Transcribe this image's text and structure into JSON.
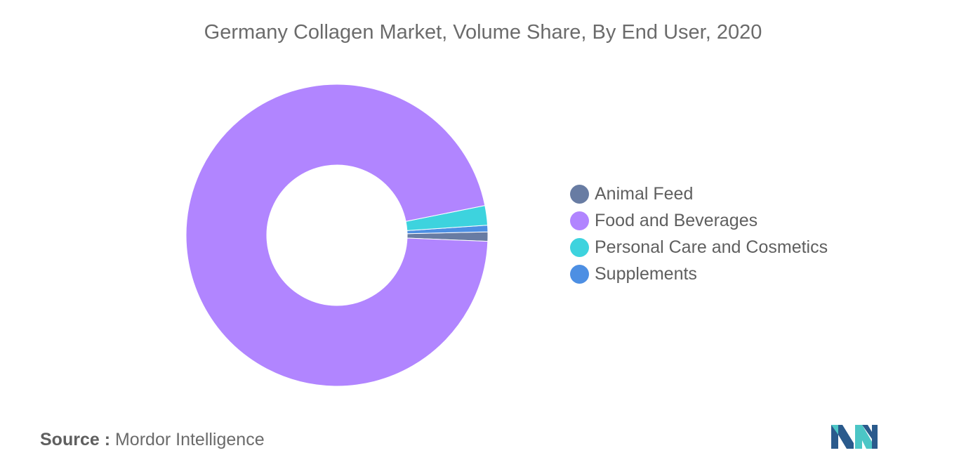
{
  "title": "Germany Collagen Market, Volume Share, By End User, 2020",
  "source": {
    "label": "Source :",
    "value": "Mordor Intelligence"
  },
  "logo": {
    "icon": "mordor-intelligence-logo",
    "colors": [
      "#2a5a8c",
      "#4cc6c6"
    ]
  },
  "chart_data": {
    "type": "pie",
    "variant": "donut",
    "title": "Germany Collagen Market, Volume Share, By End User, 2020",
    "legend_position": "right",
    "categories": [
      "Animal Feed",
      "Food and Beverages",
      "Personal Care and Cosmetics",
      "Supplements"
    ],
    "values": [
      1.0,
      96.2,
      2.1,
      0.7
    ],
    "unit": "%",
    "colors": [
      "#687ca3",
      "#b185ff",
      "#3dd3de",
      "#4d8fe3"
    ],
    "start": "3 o'clock, clockwise"
  }
}
